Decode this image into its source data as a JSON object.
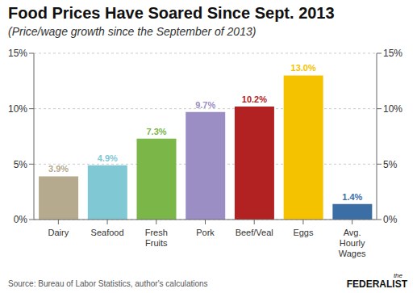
{
  "chart_data": {
    "type": "bar",
    "title": "Food Prices Have Soared Since Sept. 2013",
    "subtitle": "(Price/wage growth since the September of 2013)",
    "categories": [
      "Dairy",
      "Seafood",
      "Fresh\nFruits",
      "Pork",
      "Beef/Veal",
      "Eggs",
      "Avg.\nHourly\nWages"
    ],
    "values": [
      3.9,
      4.9,
      7.3,
      9.7,
      10.2,
      13.0,
      1.4
    ],
    "value_labels": [
      "3.9%",
      "4.9%",
      "7.3%",
      "9.7%",
      "10.2%",
      "13.0%",
      "1.4%"
    ],
    "data_labels": true,
    "colors": [
      "#b5a98e",
      "#7fc8d4",
      "#7ab648",
      "#9b8ec4",
      "#b22222",
      "#f5c200",
      "#3a6ea5"
    ],
    "ylim": [
      0,
      15
    ],
    "yticks": [
      {
        "value": 0,
        "label": "0%"
      },
      {
        "value": 5,
        "label": "5%"
      },
      {
        "value": 10,
        "label": "10%"
      },
      {
        "value": 15,
        "label": "15%"
      }
    ],
    "y2lim": [
      0,
      15
    ],
    "y2ticks": [
      {
        "value": 0,
        "label": "0%"
      },
      {
        "value": 5,
        "label": "5%"
      },
      {
        "value": 10,
        "label": "10%"
      },
      {
        "value": 15,
        "label": "15%"
      }
    ],
    "grid": true,
    "annotations": [
      "Source: Bureau of Labor Statistics,  author's calculations",
      "the",
      "FEDERALIST"
    ]
  }
}
